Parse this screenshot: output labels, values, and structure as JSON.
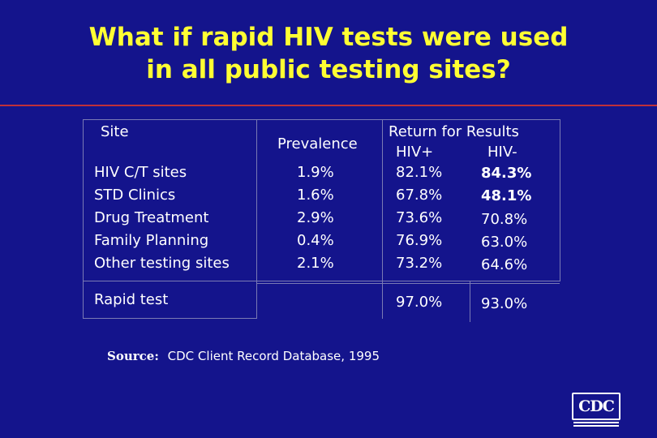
{
  "title": {
    "line1": "What if rapid HIV tests were used",
    "line2": "in all public testing sites?"
  },
  "table": {
    "header": {
      "site": "Site",
      "prevalence": "Prevalence",
      "return_for_results": "Return for Results",
      "hiv_pos": "HIV+",
      "hiv_neg": "HIV-"
    },
    "rows": [
      {
        "site": "HIV C/T sites",
        "prevalence": "1.9%",
        "hiv_pos": "82.1%",
        "hiv_neg": "84.3%"
      },
      {
        "site": "STD Clinics",
        "prevalence": "1.6%",
        "hiv_pos": "67.8%",
        "hiv_neg": "48.1%"
      },
      {
        "site": "Drug Treatment",
        "prevalence": "2.9%",
        "hiv_pos": "73.6%",
        "hiv_neg": "70.8%"
      },
      {
        "site": "Family Planning",
        "prevalence": "0.4%",
        "hiv_pos": "76.9%",
        "hiv_neg": "63.0%"
      },
      {
        "site": "Other testing sites",
        "prevalence": "2.1%",
        "hiv_pos": "73.2%",
        "hiv_neg": "64.6%"
      }
    ],
    "rapid": {
      "site": "Rapid test",
      "hiv_pos": "97.0%",
      "hiv_neg": "93.0%"
    }
  },
  "source": {
    "label": "Source:",
    "text": "CDC Client Record Database, 1995"
  },
  "logo": {
    "text": "CDC"
  },
  "colors": {
    "background": "#14148c",
    "title": "#ffff33",
    "rule": "#c0303a",
    "text": "#ffffff"
  }
}
